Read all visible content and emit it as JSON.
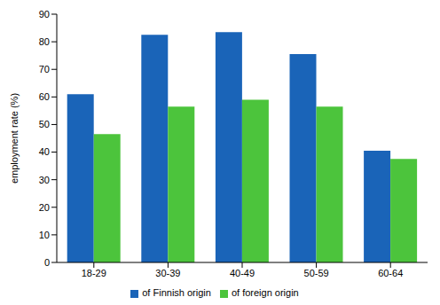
{
  "chart_data": {
    "type": "bar",
    "y_label": "employment rate (%)",
    "categories": [
      "18-29",
      "30-39",
      "40-49",
      "50-59",
      "60-64"
    ],
    "series": [
      {
        "name": "of Finnish origin",
        "color": "#1a64b8",
        "values": [
          61,
          82.5,
          83.5,
          75.5,
          40.5
        ]
      },
      {
        "name": "of foreign origin",
        "color": "#4cc43c",
        "values": [
          46.5,
          56.5,
          59,
          56.5,
          37.5
        ]
      }
    ],
    "ylim": [
      0,
      90
    ],
    "yticks": [
      0,
      10,
      20,
      30,
      40,
      50,
      60,
      70,
      80,
      90
    ],
    "grid": false,
    "legend": "bottom"
  }
}
